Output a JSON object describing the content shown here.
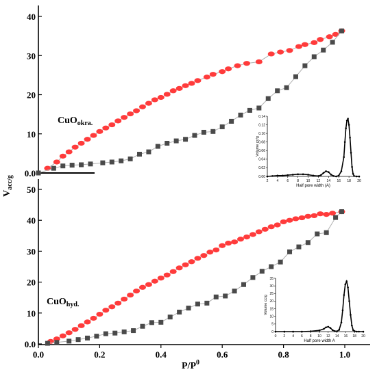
{
  "colors": {
    "adsorption": "#ff3b3b",
    "desorption": "#4a4a4a",
    "line": "#b0b0b0",
    "axis": "#000000"
  },
  "chart_data": [
    {
      "type": "line",
      "panel": "top",
      "annotation": {
        "base": "CuO",
        "sub": "okra."
      },
      "xlabel": "P/P",
      "xlabel_sup": "0",
      "ylabel": "V",
      "ylabel_sub": "acc/g",
      "xlim": [
        0,
        1.1
      ],
      "ylim": [
        0,
        43
      ],
      "xticks": [
        0.0,
        0.2,
        0.4,
        0.6,
        0.8,
        1.0
      ],
      "xtick_labels": [
        "0.0",
        "0.2",
        "0.4",
        "0.6",
        "0.8",
        "1.0"
      ],
      "yticks": [
        0,
        10,
        20,
        30,
        40
      ],
      "ytick_labels": [
        "0.0",
        "10",
        "20",
        "30",
        "40"
      ],
      "series": [
        {
          "marker": "ellipse",
          "x": [
            0.03,
            0.06,
            0.08,
            0.1,
            0.12,
            0.14,
            0.16,
            0.18,
            0.2,
            0.22,
            0.24,
            0.26,
            0.28,
            0.3,
            0.32,
            0.34,
            0.36,
            0.38,
            0.4,
            0.42,
            0.44,
            0.46,
            0.48,
            0.5,
            0.52,
            0.55,
            0.57,
            0.6,
            0.62,
            0.65,
            0.68,
            0.72,
            0.76,
            0.79,
            0.82,
            0.85,
            0.87,
            0.9,
            0.92,
            0.95,
            0.97,
            0.99
          ],
          "y": [
            1.2,
            2.8,
            4.3,
            5.4,
            6.6,
            7.6,
            8.6,
            9.6,
            10.6,
            11.5,
            12.3,
            13.3,
            14.2,
            15.1,
            15.9,
            16.9,
            17.8,
            18.7,
            19.3,
            20.1,
            21.0,
            21.6,
            22.3,
            22.9,
            23.6,
            24.5,
            25.2,
            25.9,
            26.6,
            27.4,
            28.0,
            28.4,
            30.4,
            30.9,
            31.3,
            32.3,
            32.8,
            33.3,
            34.1,
            34.8,
            35.4,
            36.3
          ]
        },
        {
          "marker": "square",
          "x": [
            0.0,
            0.05,
            0.08,
            0.11,
            0.14,
            0.17,
            0.21,
            0.24,
            0.27,
            0.3,
            0.33,
            0.36,
            0.39,
            0.42,
            0.45,
            0.48,
            0.51,
            0.54,
            0.57,
            0.6,
            0.63,
            0.66,
            0.69,
            0.72,
            0.75,
            0.78,
            0.81,
            0.84,
            0.87,
            0.9,
            0.93,
            0.96,
            0.99
          ],
          "y": [
            0.0,
            1.2,
            1.8,
            2.0,
            2.1,
            2.3,
            2.6,
            2.8,
            3.1,
            3.6,
            4.8,
            5.4,
            6.8,
            7.6,
            8.2,
            8.6,
            9.6,
            10.4,
            10.6,
            11.8,
            13.2,
            14.8,
            16.0,
            16.6,
            19.0,
            21.0,
            21.8,
            24.6,
            27.4,
            29.7,
            31.4,
            33.4,
            36.3
          ]
        }
      ],
      "inset": {
        "xlabel": "Half pore width (A)",
        "ylabel": "Volume cc/g",
        "xlim": [
          2,
          20
        ],
        "ylim": [
          0,
          0.14
        ],
        "xtick_labels": [
          "2",
          "4",
          "6",
          "8",
          "10",
          "12",
          "14",
          "16",
          "18",
          "20"
        ],
        "ytick_labels": [
          "0.00",
          "0.02",
          "0.04",
          "0.06",
          "0.08",
          "0.10",
          "0.12",
          "0.14"
        ],
        "x": [
          2,
          3,
          4,
          5,
          6,
          7,
          8,
          9,
          10,
          11,
          12,
          12.5,
          13,
          13.5,
          14,
          14.5,
          15,
          15.5,
          16,
          16.5,
          17,
          17.2,
          17.4,
          17.6,
          17.8,
          18,
          18.2,
          18.4,
          18.6,
          18.8,
          19,
          19.5,
          20
        ],
        "y": [
          0,
          0.001,
          0.002,
          0.002,
          0.003,
          0.004,
          0.005,
          0.005,
          0.004,
          0.002,
          0.001,
          0.003,
          0.008,
          0.012,
          0.01,
          0.004,
          0.001,
          0.0,
          0.002,
          0.012,
          0.045,
          0.08,
          0.112,
          0.13,
          0.134,
          0.12,
          0.09,
          0.055,
          0.022,
          0.006,
          0.001,
          0,
          0
        ]
      }
    },
    {
      "type": "line",
      "panel": "bottom",
      "annotation": {
        "base": "CuO",
        "sub": "hyd."
      },
      "xlim": [
        0,
        1.1
      ],
      "ylim": [
        0,
        52
      ],
      "yticks": [
        0,
        10,
        20,
        30,
        40,
        50
      ],
      "ytick_labels": [
        "0.0",
        "10",
        "20",
        "30",
        "40",
        "50"
      ],
      "series": [
        {
          "marker": "ellipse",
          "x": [
            0.04,
            0.06,
            0.08,
            0.1,
            0.12,
            0.14,
            0.16,
            0.18,
            0.2,
            0.22,
            0.24,
            0.26,
            0.28,
            0.3,
            0.32,
            0.34,
            0.36,
            0.38,
            0.4,
            0.42,
            0.44,
            0.46,
            0.48,
            0.5,
            0.52,
            0.54,
            0.56,
            0.58,
            0.6,
            0.62,
            0.64,
            0.66,
            0.68,
            0.7,
            0.72,
            0.74,
            0.76,
            0.78,
            0.8,
            0.82,
            0.84,
            0.86,
            0.88,
            0.9,
            0.92,
            0.94,
            0.96,
            0.99
          ],
          "y": [
            0.8,
            1.6,
            2.6,
            3.6,
            4.7,
            5.9,
            7.1,
            8.3,
            9.6,
            10.9,
            12.0,
            13.2,
            14.5,
            15.8,
            17.1,
            18.3,
            19.2,
            20.3,
            21.3,
            22.3,
            23.4,
            24.6,
            25.6,
            26.6,
            27.7,
            28.6,
            29.7,
            30.4,
            31.8,
            32.6,
            33.0,
            33.9,
            34.6,
            35.4,
            36.3,
            37.1,
            37.9,
            38.5,
            39.5,
            40.0,
            40.5,
            40.8,
            41.3,
            41.5,
            42.1,
            41.9,
            42.3,
            42.8
          ]
        },
        {
          "marker": "square",
          "x": [
            0.03,
            0.06,
            0.1,
            0.13,
            0.16,
            0.19,
            0.22,
            0.25,
            0.28,
            0.31,
            0.34,
            0.37,
            0.4,
            0.43,
            0.46,
            0.49,
            0.52,
            0.55,
            0.58,
            0.61,
            0.64,
            0.67,
            0.7,
            0.73,
            0.76,
            0.79,
            0.82,
            0.85,
            0.88,
            0.91,
            0.94,
            0.97,
            0.99
          ],
          "y": [
            0.2,
            0.5,
            0.9,
            1.4,
            1.9,
            2.5,
            3.3,
            3.5,
            3.9,
            4.3,
            5.7,
            6.9,
            7.0,
            8.7,
            10.3,
            11.6,
            12.9,
            13.2,
            15.2,
            15.5,
            17.1,
            19.2,
            21.5,
            23.5,
            25.0,
            26.5,
            29.8,
            31.4,
            32.8,
            35.6,
            36.0,
            40.9,
            42.8
          ]
        }
      ],
      "inset": {
        "xlabel": "Half pore width A",
        "ylabel": "Volume cc/g",
        "xlim": [
          0,
          20
        ],
        "ylim": [
          0,
          35
        ],
        "xtick_labels": [
          "0",
          "2",
          "4",
          "6",
          "8",
          "10",
          "12",
          "14",
          "16",
          "18",
          "20"
        ],
        "ytick_labels": [
          "0",
          "5",
          "10",
          "15",
          "20",
          "25",
          "30",
          "35"
        ],
        "x": [
          0,
          2,
          4,
          6,
          8,
          10,
          11,
          11.5,
          12,
          12.5,
          13,
          13.5,
          14,
          14.5,
          15,
          15.3,
          15.6,
          15.9,
          16.2,
          16.5,
          16.8,
          17.1,
          17.4,
          17.7,
          18,
          18.5,
          19,
          20
        ],
        "y": [
          0,
          0,
          0,
          0,
          0.2,
          0.8,
          1.8,
          2.8,
          3.2,
          2.4,
          1.0,
          0.3,
          0.2,
          1.2,
          6,
          14,
          24,
          31,
          33,
          29,
          20,
          11,
          4,
          1,
          0.3,
          0,
          0,
          0
        ]
      }
    }
  ]
}
